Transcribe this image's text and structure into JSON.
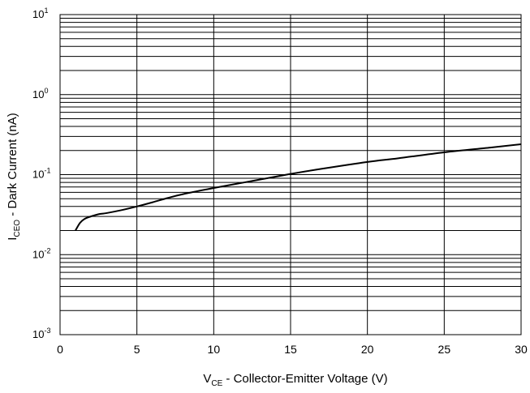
{
  "chart_data": {
    "type": "line",
    "xlabel_main": "V",
    "xlabel_sub": "CE",
    "xlabel_rest": " - Collector-Emitter Voltage (V)",
    "ylabel_main": "I",
    "ylabel_sub": "CEO",
    "ylabel_rest": " - Dark Current (nA)",
    "xlim": [
      0,
      30
    ],
    "ylim": [
      0.001,
      10
    ],
    "yscale": "log",
    "grid": true,
    "x_ticks": [
      "0",
      "5",
      "10",
      "15",
      "20",
      "25",
      "30"
    ],
    "x_tick_values": [
      0,
      5,
      10,
      15,
      20,
      25,
      30
    ],
    "y_ticks": [
      {
        "base": "10",
        "exp": "-3",
        "value": 0.001
      },
      {
        "base": "10",
        "exp": "-2",
        "value": 0.01
      },
      {
        "base": "10",
        "exp": "-1",
        "value": 0.1
      },
      {
        "base": "10",
        "exp": "0",
        "value": 1
      },
      {
        "base": "10",
        "exp": "1",
        "value": 10
      }
    ],
    "series": [
      {
        "color": "#000000",
        "x": [
          1.0,
          1.3,
          1.6,
          2.0,
          2.5,
          3.0,
          4.0,
          5.0,
          6.0,
          7.0,
          8.0,
          10.0,
          12.0,
          14.0,
          15.0,
          17.0,
          20.0,
          22.0,
          25.0,
          28.0,
          30.0
        ],
        "y": [
          0.02,
          0.025,
          0.028,
          0.03,
          0.032,
          0.033,
          0.036,
          0.04,
          0.045,
          0.051,
          0.057,
          0.068,
          0.08,
          0.094,
          0.102,
          0.118,
          0.144,
          0.16,
          0.19,
          0.218,
          0.24
        ]
      }
    ]
  }
}
